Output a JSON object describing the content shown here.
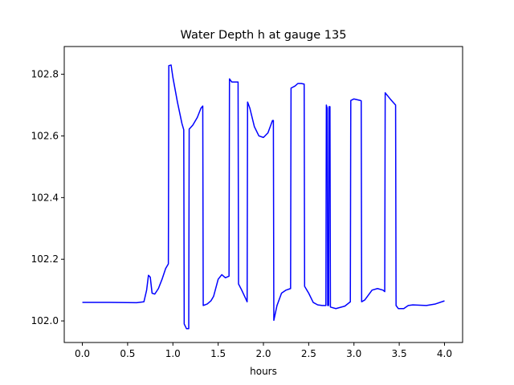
{
  "chart_data": {
    "type": "line",
    "title": "Water Depth h at gauge 135",
    "xlabel": "hours",
    "ylabel": "",
    "xlim": [
      -0.2,
      4.2
    ],
    "ylim": [
      101.93,
      102.89
    ],
    "xticks": [
      0.0,
      0.5,
      1.0,
      1.5,
      2.0,
      2.5,
      3.0,
      3.5,
      4.0
    ],
    "xtick_labels": [
      "0.0",
      "0.5",
      "1.0",
      "1.5",
      "2.0",
      "2.5",
      "3.0",
      "3.5",
      "4.0"
    ],
    "yticks": [
      102.0,
      102.2,
      102.4,
      102.6,
      102.8
    ],
    "ytick_labels": [
      "102.0",
      "102.2",
      "102.4",
      "102.6",
      "102.8"
    ],
    "grid": false,
    "series": [
      {
        "color": "#0000ff",
        "x": [
          0.0,
          0.3,
          0.6,
          0.68,
          0.71,
          0.73,
          0.75,
          0.77,
          0.8,
          0.84,
          0.88,
          0.92,
          0.95,
          0.955,
          0.98,
          1.0,
          1.05,
          1.1,
          1.12,
          1.125,
          1.15,
          1.175,
          1.18,
          1.22,
          1.27,
          1.31,
          1.33,
          1.335,
          1.38,
          1.42,
          1.45,
          1.5,
          1.54,
          1.58,
          1.62,
          1.625,
          1.65,
          1.7,
          1.72,
          1.725,
          1.76,
          1.8,
          1.82,
          1.825,
          1.85,
          1.9,
          1.95,
          2.0,
          2.05,
          2.1,
          2.11,
          2.115,
          2.15,
          2.2,
          2.25,
          2.3,
          2.305,
          2.35,
          2.38,
          2.42,
          2.45,
          2.455,
          2.5,
          2.55,
          2.6,
          2.65,
          2.69,
          2.695,
          2.705,
          2.71,
          2.72,
          2.725,
          2.735,
          2.74,
          2.8,
          2.9,
          2.96,
          2.965,
          3.0,
          3.07,
          3.08,
          3.085,
          3.12,
          3.2,
          3.26,
          3.32,
          3.34,
          3.345,
          3.4,
          3.46,
          3.465,
          3.49,
          3.55,
          3.6,
          3.65,
          3.8,
          3.9,
          4.0
        ],
        "y": [
          102.06,
          102.06,
          102.059,
          102.062,
          102.1,
          102.148,
          102.142,
          102.09,
          102.087,
          102.105,
          102.135,
          102.17,
          102.185,
          102.828,
          102.83,
          102.79,
          102.71,
          102.64,
          102.62,
          101.99,
          101.975,
          101.975,
          102.622,
          102.635,
          102.66,
          102.69,
          102.697,
          102.05,
          102.055,
          102.065,
          102.08,
          102.135,
          102.15,
          102.14,
          102.145,
          102.785,
          102.775,
          102.775,
          102.775,
          102.12,
          102.1,
          102.075,
          102.062,
          102.71,
          102.69,
          102.63,
          102.6,
          102.595,
          102.61,
          102.65,
          102.65,
          102.002,
          102.05,
          102.09,
          102.1,
          102.105,
          102.755,
          102.762,
          102.77,
          102.77,
          102.768,
          102.112,
          102.09,
          102.06,
          102.052,
          102.05,
          102.05,
          102.7,
          102.69,
          102.05,
          102.05,
          102.695,
          102.695,
          102.045,
          102.04,
          102.048,
          102.062,
          102.715,
          102.72,
          102.715,
          102.714,
          102.062,
          102.068,
          102.1,
          102.105,
          102.1,
          102.095,
          102.74,
          102.72,
          102.7,
          102.05,
          102.04,
          102.04,
          102.05,
          102.052,
          102.05,
          102.055,
          102.065
        ]
      }
    ]
  }
}
